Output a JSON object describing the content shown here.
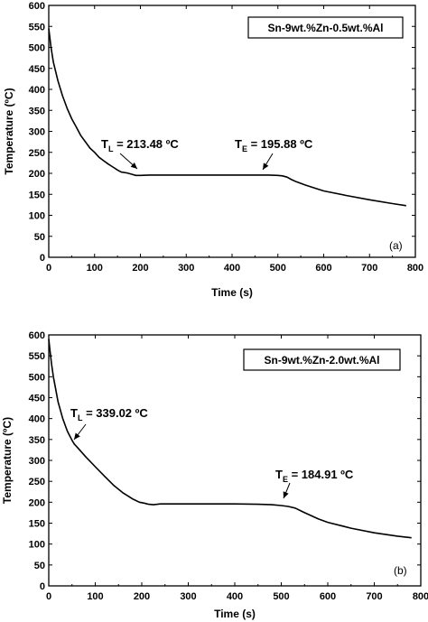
{
  "chart_data": [
    {
      "type": "line",
      "panel_label": "(a)",
      "legend": "Sn-9wt.%Zn-0.5wt.%Al",
      "xlabel": "Time (s)",
      "ylabel": "Temperature (ºC)",
      "xlim": [
        0,
        800
      ],
      "ylim": [
        0,
        600
      ],
      "xticks": [
        0,
        100,
        200,
        300,
        400,
        500,
        600,
        700,
        800
      ],
      "yticks": [
        0,
        50,
        100,
        150,
        200,
        250,
        300,
        350,
        400,
        450,
        500,
        550,
        600
      ],
      "series": [
        {
          "x": [
            0,
            5,
            10,
            20,
            30,
            40,
            50,
            60,
            70,
            80,
            90,
            100,
            110,
            120,
            130,
            140,
            150,
            158,
            170,
            180,
            190,
            200,
            220,
            250,
            300,
            350,
            400,
            450,
            480,
            500,
            510,
            520,
            530,
            540,
            560,
            580,
            600,
            650,
            700,
            750,
            780
          ],
          "y": [
            545,
            500,
            465,
            420,
            385,
            355,
            330,
            310,
            290,
            275,
            260,
            250,
            238,
            230,
            222,
            215,
            208,
            203,
            201,
            198,
            195,
            195,
            196,
            196,
            196,
            196,
            196,
            196,
            196,
            195,
            194,
            191,
            185,
            180,
            172,
            165,
            158,
            147,
            137,
            128,
            123
          ]
        }
      ],
      "annotations": [
        {
          "main": "T",
          "sub": "L",
          "value": " = 213.48 ºC",
          "x": 158,
          "y": 203
        },
        {
          "main": "T",
          "sub": "E",
          "value": " = 195.88 ºC",
          "x": 455,
          "y": 196
        }
      ]
    },
    {
      "type": "line",
      "panel_label": "(b)",
      "legend": "Sn-9wt.%Zn-2.0wt.%Al",
      "xlabel": "Time (s)",
      "ylabel": "Temperature (ºC)",
      "xlim": [
        0,
        800
      ],
      "ylim": [
        0,
        600
      ],
      "xticks": [
        0,
        100,
        200,
        300,
        400,
        500,
        600,
        700,
        800
      ],
      "yticks": [
        0,
        50,
        100,
        150,
        200,
        250,
        300,
        350,
        400,
        450,
        500,
        550,
        600
      ],
      "series": [
        {
          "x": [
            0,
            3,
            6,
            10,
            15,
            20,
            30,
            40,
            50,
            55,
            60,
            80,
            100,
            120,
            140,
            160,
            180,
            195,
            205,
            215,
            225,
            240,
            260,
            300,
            350,
            400,
            450,
            480,
            500,
            515,
            530,
            550,
            580,
            600,
            650,
            700,
            750,
            780
          ],
          "y": [
            590,
            560,
            530,
            500,
            470,
            440,
            400,
            370,
            348,
            339,
            333,
            308,
            285,
            262,
            240,
            222,
            208,
            200,
            198,
            195,
            194,
            196,
            196,
            196,
            196,
            196,
            195,
            194,
            192,
            190,
            186,
            175,
            160,
            152,
            138,
            127,
            119,
            115
          ]
        }
      ],
      "annotations": [
        {
          "main": "T",
          "sub": "L",
          "value": " = 339.02 ºC",
          "x": 57,
          "y": 339
        },
        {
          "main": "T",
          "sub": "E",
          "value": " = 184.91 ºC",
          "x": 525,
          "y": 188
        }
      ]
    }
  ]
}
